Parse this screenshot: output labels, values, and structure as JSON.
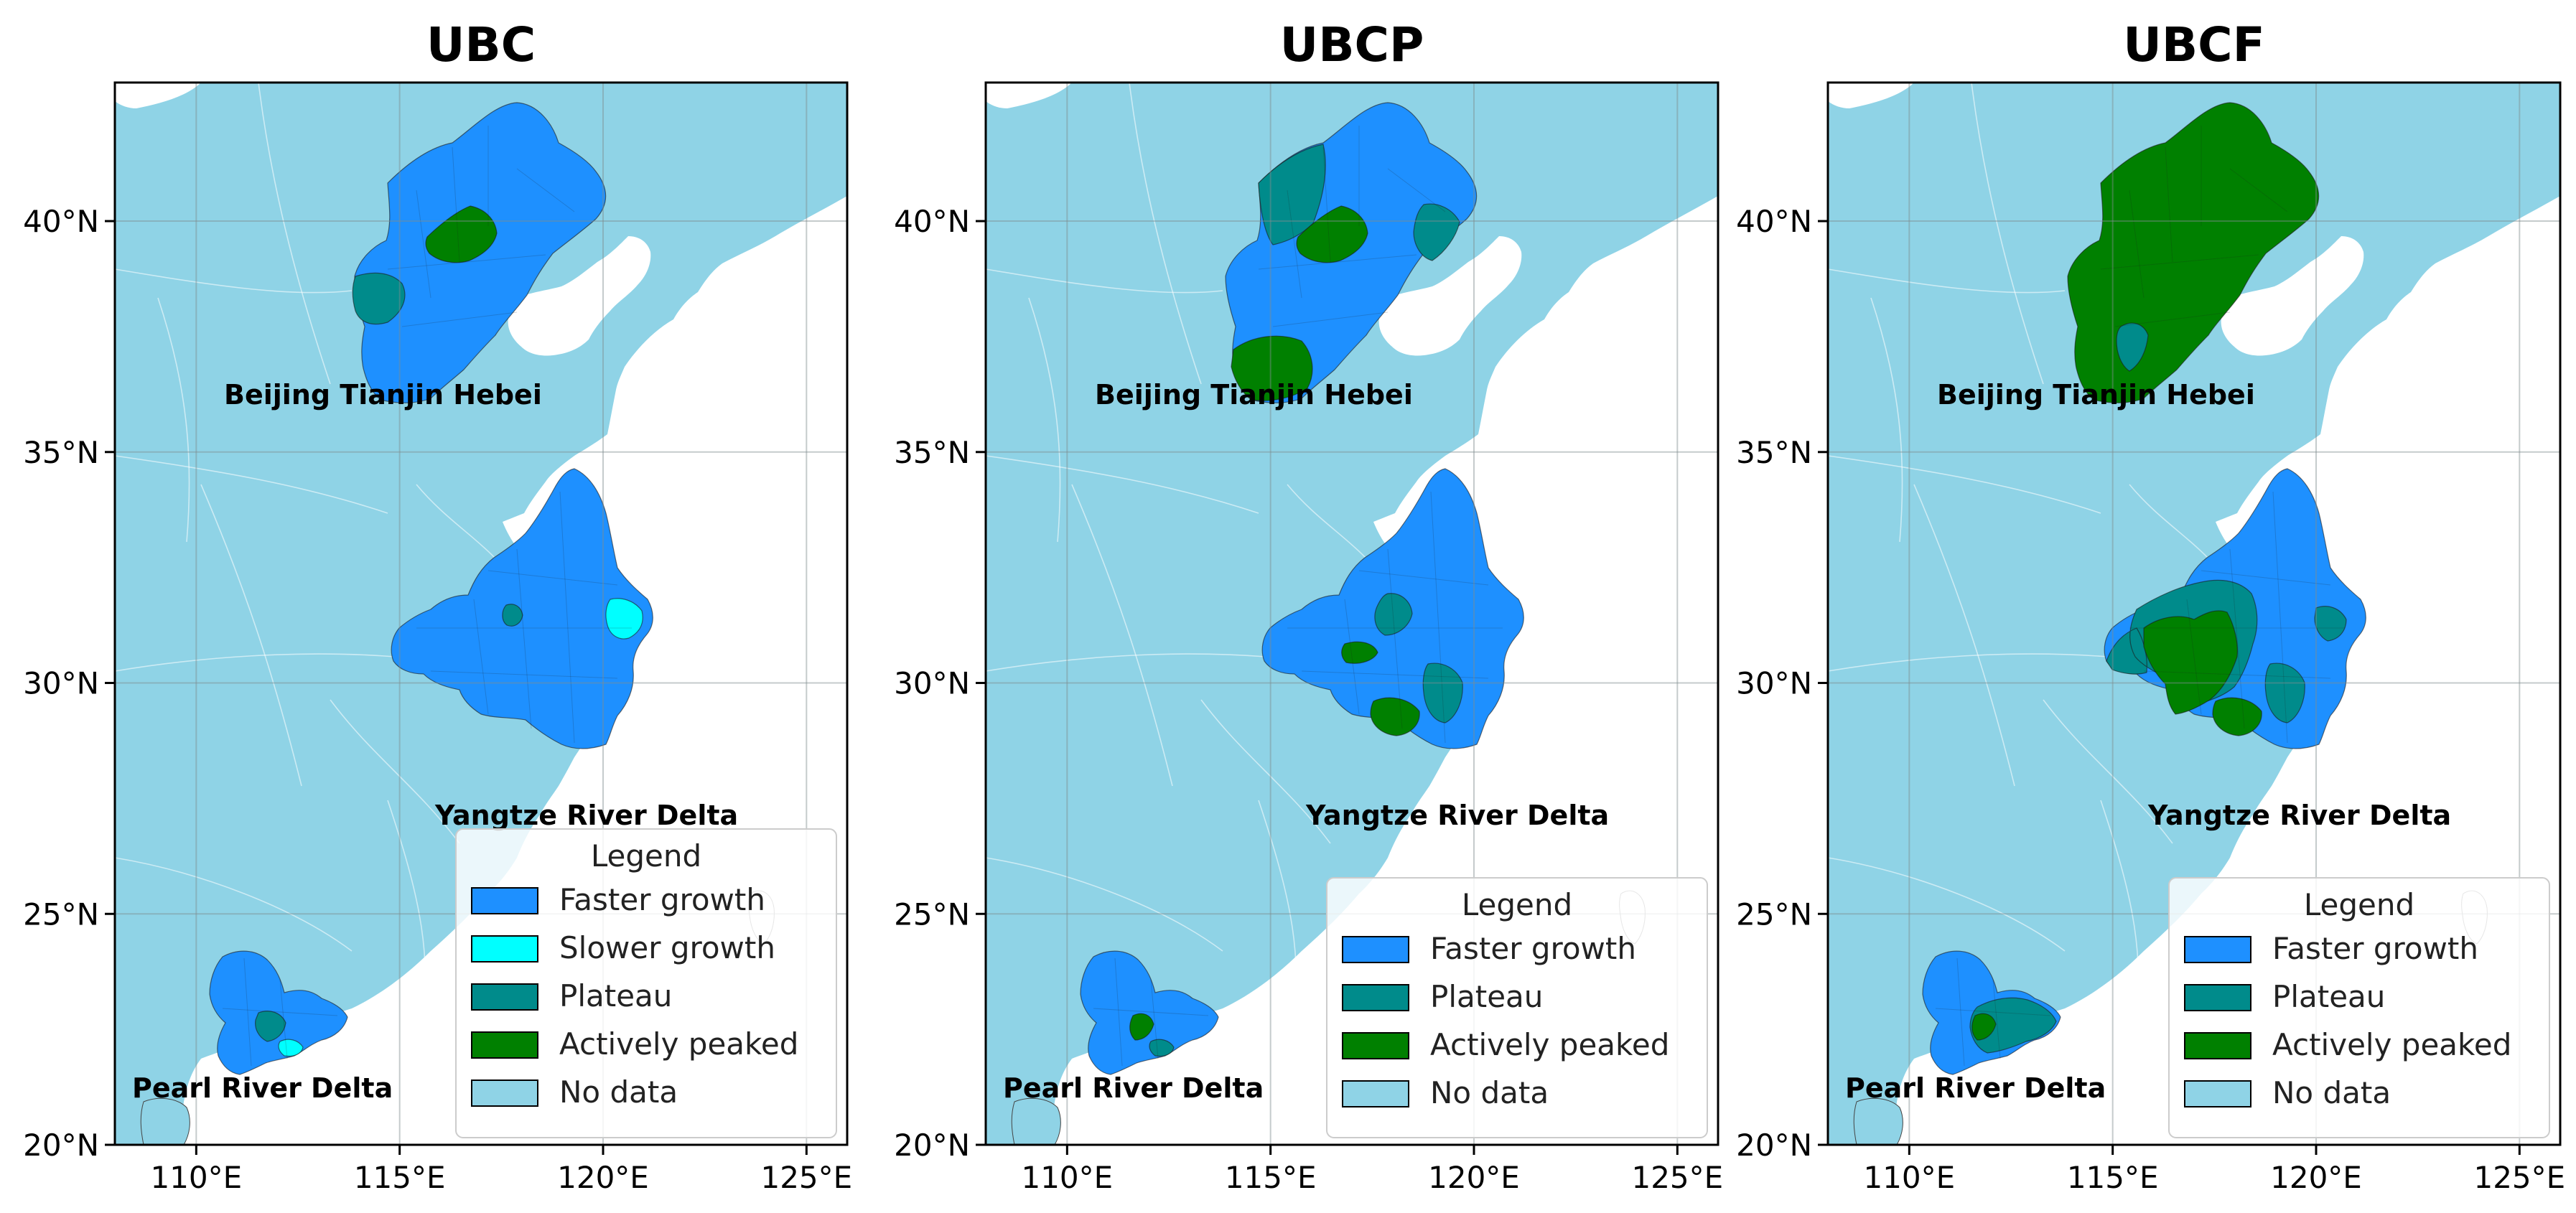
{
  "colors": {
    "faster_growth": "#1e90ff",
    "slower_growth": "#00ffff",
    "plateau": "#008b8b",
    "actively_peaked": "#008000",
    "no_data": "#8fd3e6",
    "sea": "#ffffff"
  },
  "axes": {
    "lon_ticks": [
      "110°E",
      "115°E",
      "120°E",
      "125°E"
    ],
    "lat_ticks": [
      "20°N",
      "25°N",
      "30°N",
      "35°N",
      "40°N"
    ]
  },
  "region_labels": {
    "bth": "Beijing Tianjin Hebei",
    "yrd": "Yangtze River Delta",
    "prd": "Pearl River Delta"
  },
  "panels": [
    {
      "title": "UBC",
      "legend": {
        "title": "Legend",
        "items": [
          {
            "label": "Faster growth",
            "color_key": "faster_growth"
          },
          {
            "label": "Slower growth",
            "color_key": "slower_growth"
          },
          {
            "label": "Plateau",
            "color_key": "plateau"
          },
          {
            "label": "Actively peaked",
            "color_key": "actively_peaked"
          },
          {
            "label": "No data",
            "color_key": "no_data"
          }
        ]
      }
    },
    {
      "title": "UBCP",
      "legend": {
        "title": "Legend",
        "items": [
          {
            "label": "Faster growth",
            "color_key": "faster_growth"
          },
          {
            "label": "Plateau",
            "color_key": "plateau"
          },
          {
            "label": "Actively peaked",
            "color_key": "actively_peaked"
          },
          {
            "label": "No data",
            "color_key": "no_data"
          }
        ]
      }
    },
    {
      "title": "UBCF",
      "legend": {
        "title": "Legend",
        "items": [
          {
            "label": "Faster growth",
            "color_key": "faster_growth"
          },
          {
            "label": "Plateau",
            "color_key": "plateau"
          },
          {
            "label": "Actively peaked",
            "color_key": "actively_peaked"
          },
          {
            "label": "No data",
            "color_key": "no_data"
          }
        ]
      }
    }
  ]
}
